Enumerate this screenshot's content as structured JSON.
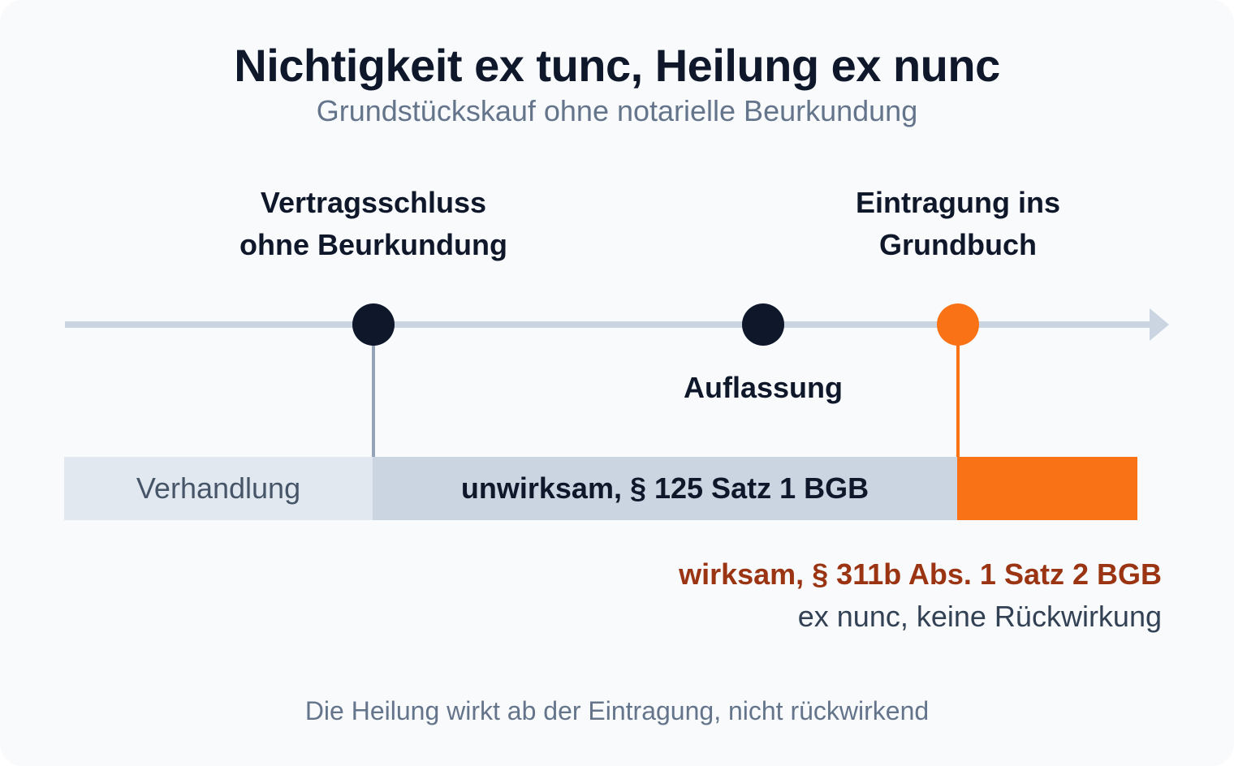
{
  "title": "Nichtigkeit ex tunc, Heilung ex nunc",
  "subtitle": "Grundstückskauf ohne notarielle Beurkundung",
  "events": [
    {
      "label_line1": "Vertragsschluss",
      "label_line2": "ohne Beurkundung",
      "marker_color": "#0f172a"
    },
    {
      "label": "Auflassung",
      "marker_color": "#0f172a"
    },
    {
      "label_line1": "Eintragung ins",
      "label_line2": "Grundbuch",
      "marker_color": "#f97316"
    }
  ],
  "segments": [
    {
      "label": "Verhandlung",
      "color": "#e2e8f0"
    },
    {
      "label": "unwirksam, § 125 Satz 1 BGB",
      "color": "#cbd5e1"
    },
    {
      "label": "",
      "color": "#f97316"
    }
  ],
  "note": {
    "strong": "wirksam, § 311b Abs. 1 Satz 2 BGB",
    "sub": "ex nunc, keine Rückwirkung"
  },
  "footnote": "Die Heilung wirkt ab der Eintragung, nicht rückwirkend",
  "colors": {
    "axis": "#cbd5e1",
    "connector_neutral": "#94a3b8",
    "accent": "#f97316",
    "dark": "#0f172a"
  }
}
